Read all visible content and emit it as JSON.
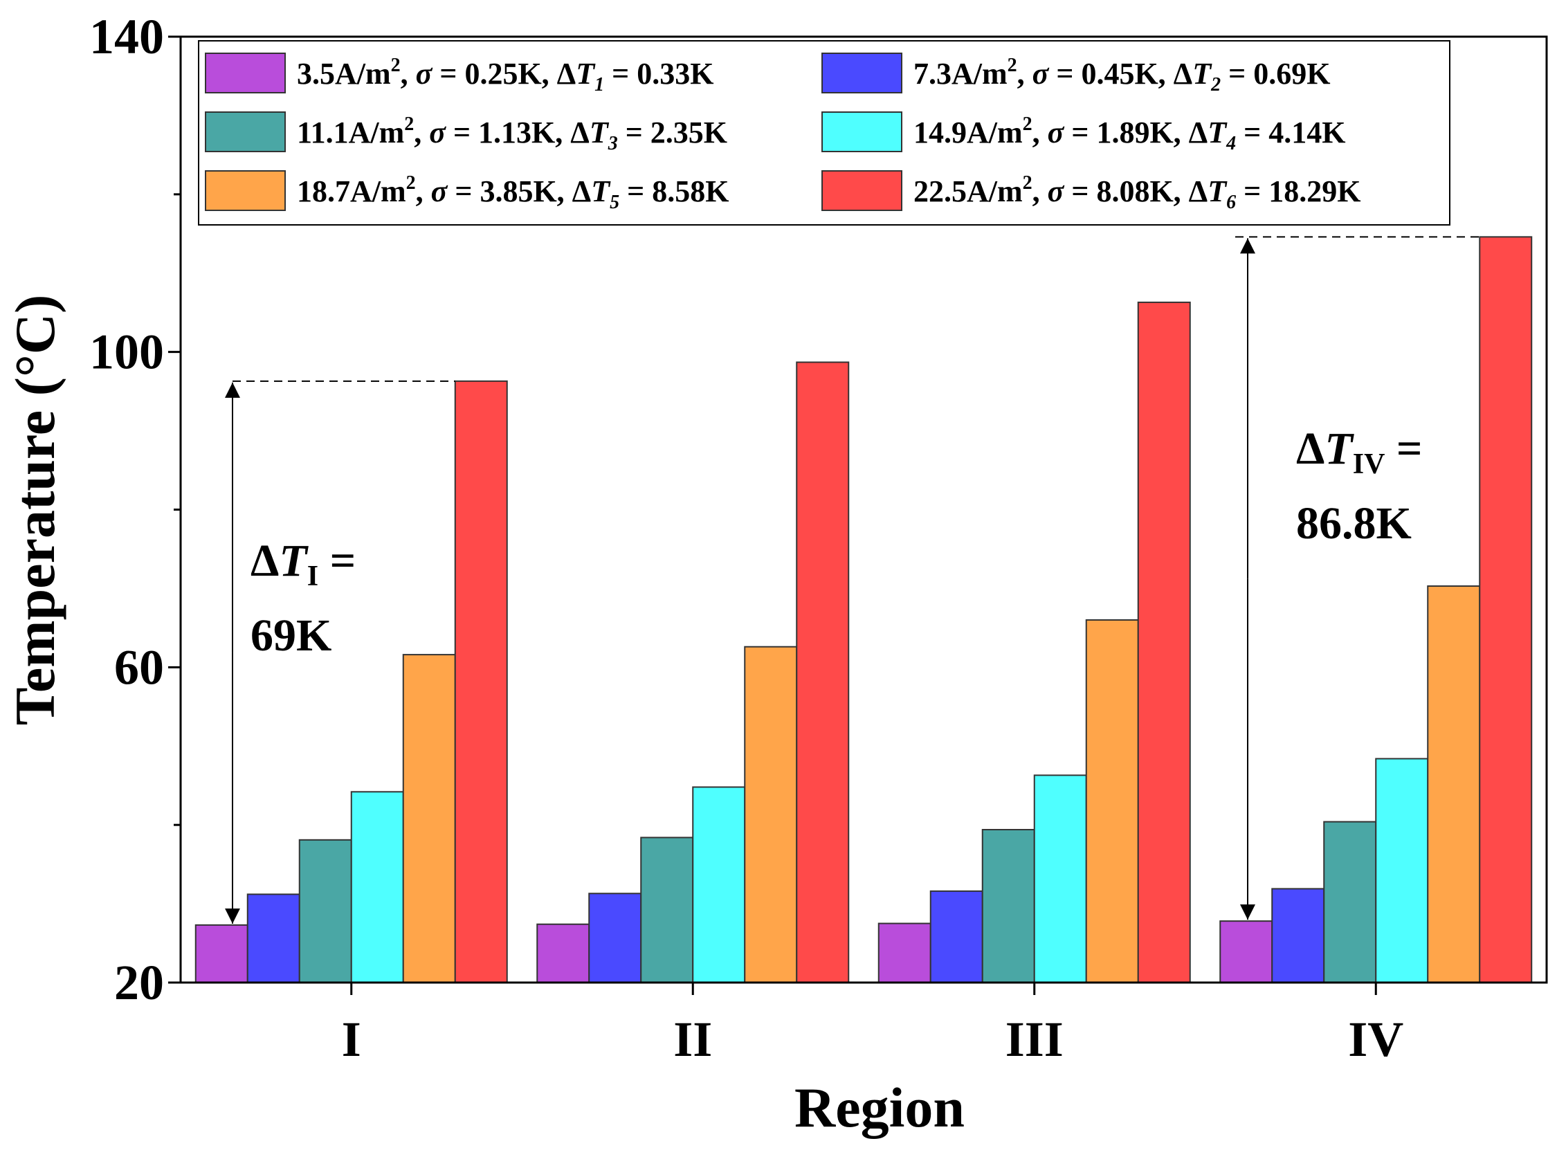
{
  "chart_data": {
    "type": "bar",
    "title": "",
    "xlabel": "Region",
    "ylabel": "Temperature (°C)",
    "ylim": [
      20,
      140
    ],
    "yticks": [
      20,
      60,
      100,
      140
    ],
    "categories": [
      "I",
      "II",
      "III",
      "IV"
    ],
    "grid": false,
    "legend_position": "top",
    "series": [
      {
        "name": "3.5A/m², σ = 0.25K, ΔT1 = 0.33K",
        "legend": {
          "cur": "3.5",
          "sigma": "0.25",
          "dt_sub": "1",
          "dt": "0.33"
        },
        "color": "#b94ddb",
        "values": [
          27.3,
          27.4,
          27.5,
          27.8
        ]
      },
      {
        "name": "7.3A/m², σ = 0.45K, ΔT2 = 0.69K",
        "legend": {
          "cur": "7.3",
          "sigma": "0.45",
          "dt_sub": "2",
          "dt": "0.69"
        },
        "color": "#4a4aff",
        "values": [
          31.2,
          31.3,
          31.6,
          31.9
        ]
      },
      {
        "name": "11.1A/m², σ = 1.13K, ΔT3 = 2.35K",
        "legend": {
          "cur": "11.1",
          "sigma": "1.13",
          "dt_sub": "3",
          "dt": "2.35"
        },
        "color": "#4aa7a5",
        "values": [
          38.1,
          38.4,
          39.4,
          40.4
        ]
      },
      {
        "name": "14.9A/m², σ = 1.89K, ΔT4 = 4.14K",
        "legend": {
          "cur": "14.9",
          "sigma": "1.89",
          "dt_sub": "4",
          "dt": "4.14"
        },
        "color": "#4fffff",
        "values": [
          44.2,
          44.8,
          46.3,
          48.4
        ]
      },
      {
        "name": "18.7A/m², σ = 3.85K, ΔT5 = 8.58K",
        "legend": {
          "cur": "18.7",
          "sigma": "3.85",
          "dt_sub": "5",
          "dt": "8.58"
        },
        "color": "#ffa54a",
        "values": [
          61.6,
          62.6,
          66.0,
          70.3
        ]
      },
      {
        "name": "22.5A/m², σ = 8.08K, ΔT6 = 18.29K",
        "legend": {
          "cur": "22.5",
          "sigma": "8.08",
          "dt_sub": "6",
          "dt": "18.29"
        },
        "color": "#ff4a4a",
        "values": [
          96.3,
          98.7,
          106.3,
          114.6
        ]
      }
    ],
    "legend_text": {
      "current_unit": "A/m",
      "current_exp": "2",
      "sigma_symbol": "σ",
      "equals": " = ",
      "kelvin": "K",
      "delta_symbol": "Δ",
      "t_symbol": "T"
    },
    "annotations": [
      {
        "delta": "Δ",
        "symbol": "T",
        "sub": "I",
        "equals": " =",
        "value": "69K",
        "from": 27.3,
        "to": 96.3
      },
      {
        "delta": "Δ",
        "symbol": "T",
        "sub": "IV",
        "equals": " =",
        "value": "86.8K",
        "from": 27.8,
        "to": 114.6
      }
    ]
  }
}
